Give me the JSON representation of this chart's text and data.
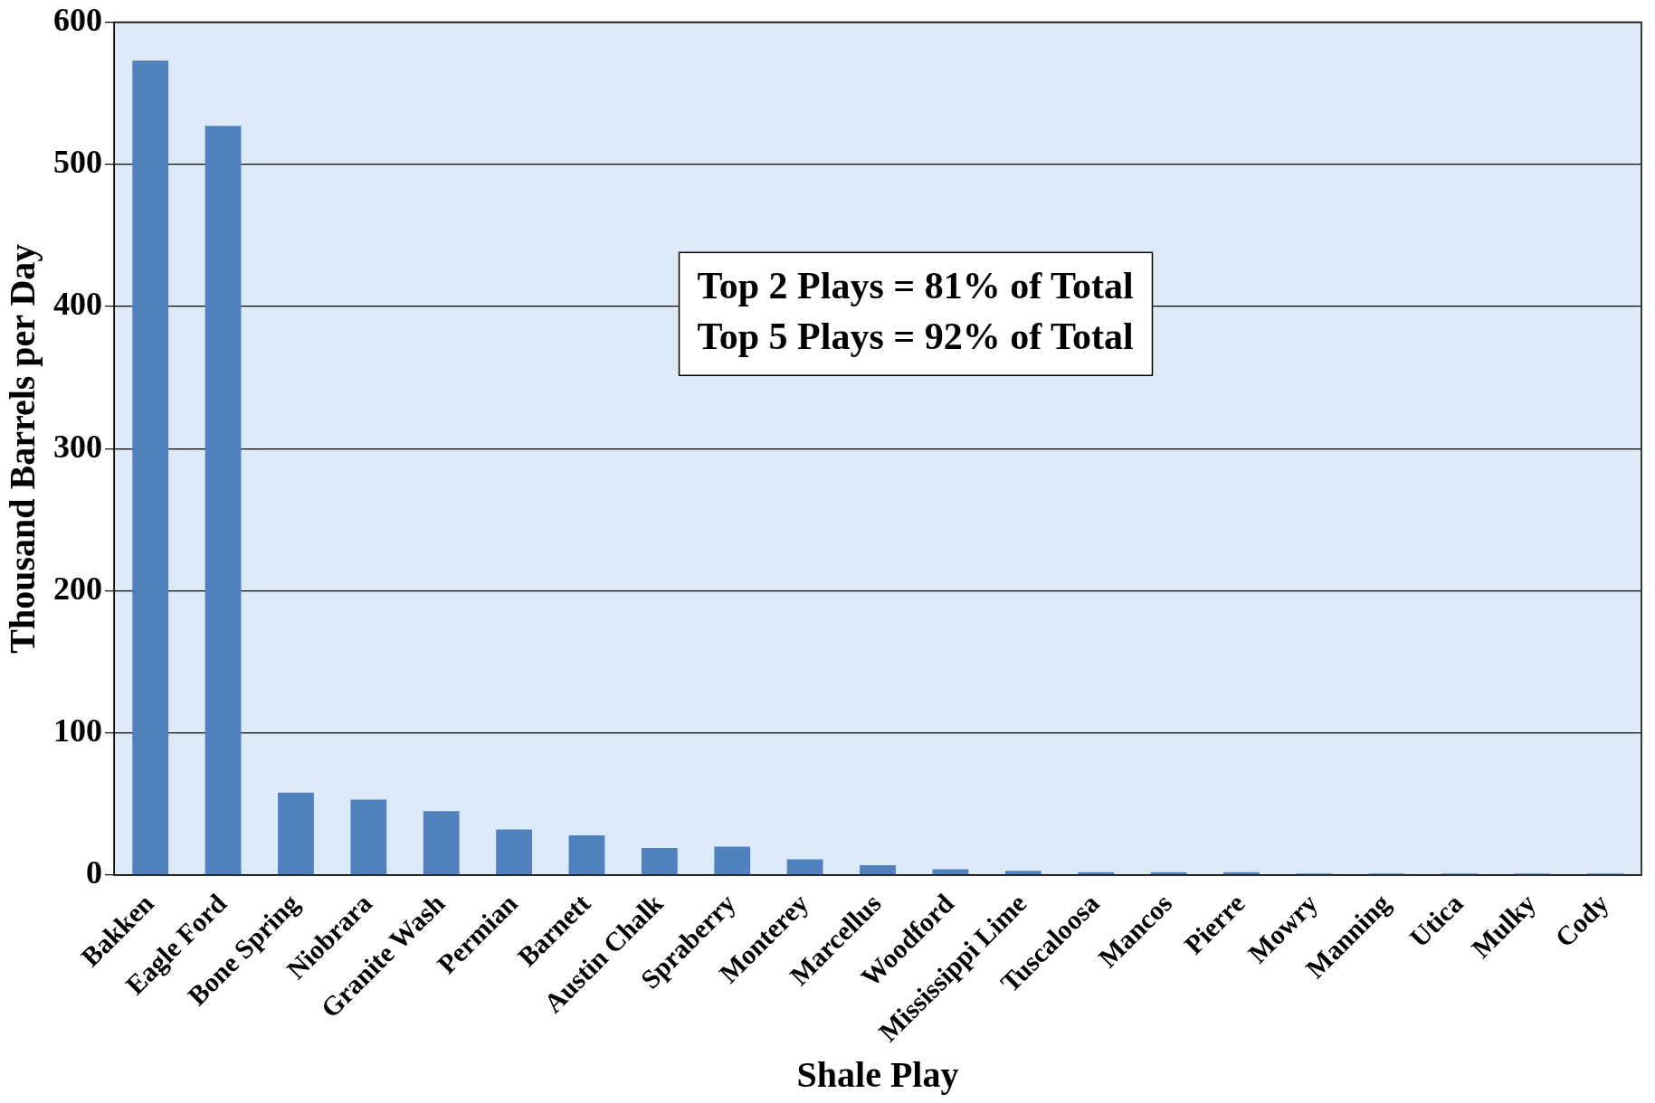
{
  "chart_data": {
    "type": "bar",
    "xlabel": "Shale Play",
    "ylabel": "Thousand Barrels per Day",
    "categories": [
      "Bakken",
      "Eagle Ford",
      "Bone Spring",
      "Niobrara",
      "Granite Wash",
      "Permian",
      "Barnett",
      "Austin Chalk",
      "Spraberry",
      "Monterey",
      "Marcellus",
      "Woodford",
      "Mississippi Lime",
      "Tuscaloosa",
      "Mancos",
      "Pierre",
      "Mowry",
      "Manning",
      "Utica",
      "Mulky",
      "Cody"
    ],
    "values": [
      573,
      527,
      58,
      53,
      45,
      32,
      28,
      19,
      20,
      11,
      7,
      4,
      3,
      2,
      2,
      2,
      1,
      1,
      1,
      1,
      1
    ],
    "color": "#4f81bd",
    "ylim": [
      0,
      600
    ],
    "yticks": [
      0,
      100,
      200,
      300,
      400,
      500,
      600
    ],
    "grid": "y",
    "legend": false,
    "annotations": [
      "Top 2 Plays = 81% of Total",
      "Top 5 Plays = 92% of Total"
    ]
  }
}
